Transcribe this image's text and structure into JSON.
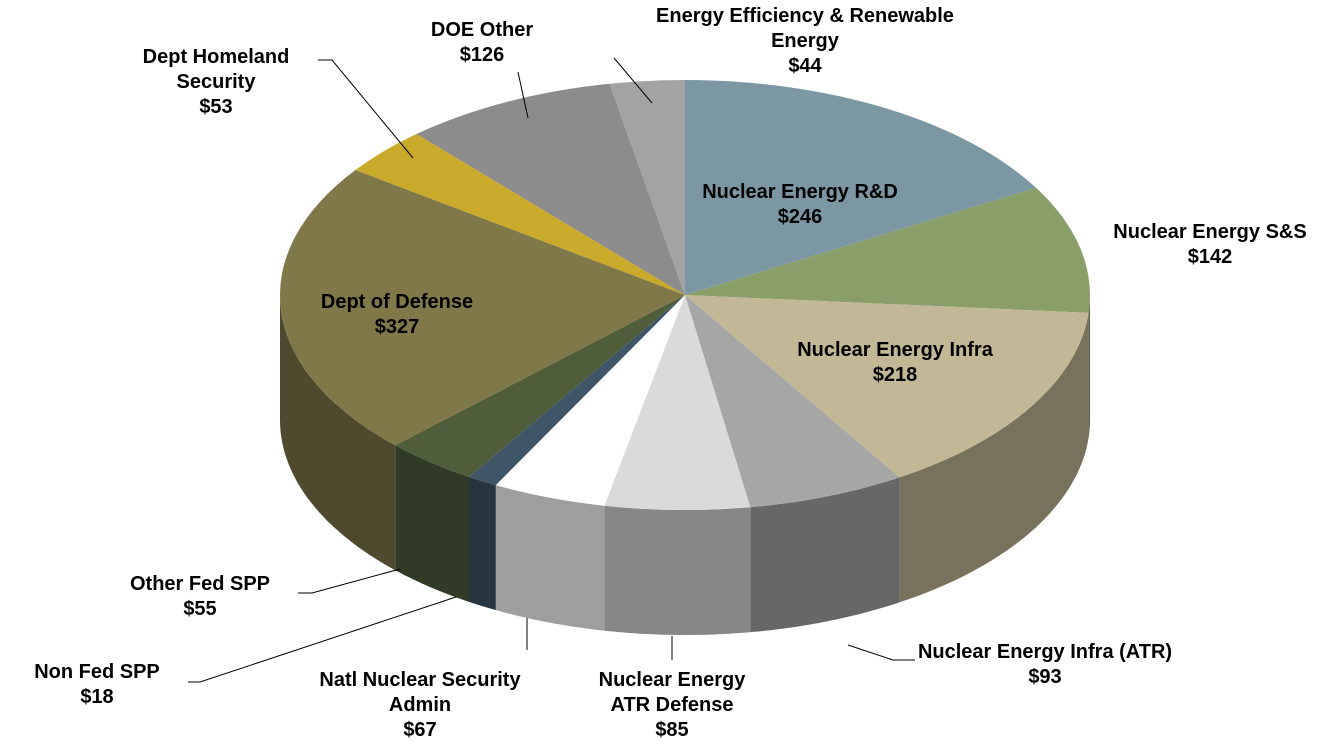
{
  "chart_data": {
    "type": "pie",
    "categories": [
      "Nuclear Energy R&D",
      "Nuclear Energy S&S",
      "Nuclear Energy Infra",
      "Nuclear Energy Infra (ATR)",
      "Nuclear Energy ATR Defense",
      "Natl Nuclear Security Admin",
      "Non Fed SPP",
      "Other Fed SPP",
      "Dept of Defense",
      "Dept Homeland Security",
      "DOE Other",
      "Energy Efficiency & Renewable Energy"
    ],
    "values": [
      246,
      142,
      218,
      93,
      85,
      67,
      18,
      55,
      327,
      53,
      126,
      44
    ],
    "value_labels": [
      "$246",
      "$142",
      "$218",
      "$93",
      "$85",
      "$67",
      "$18",
      "$55",
      "$327",
      "$53",
      "$126",
      "$44"
    ],
    "colors": [
      "#7b97a3",
      "#8a9e6a",
      "#c2b896",
      "#a6a6a6",
      "#dadada",
      "#ffffff",
      "#3f5668",
      "#4f5d3a",
      "#807849",
      "#c9aa2a",
      "#8c8c8c",
      "#a3a3a3"
    ]
  }
}
